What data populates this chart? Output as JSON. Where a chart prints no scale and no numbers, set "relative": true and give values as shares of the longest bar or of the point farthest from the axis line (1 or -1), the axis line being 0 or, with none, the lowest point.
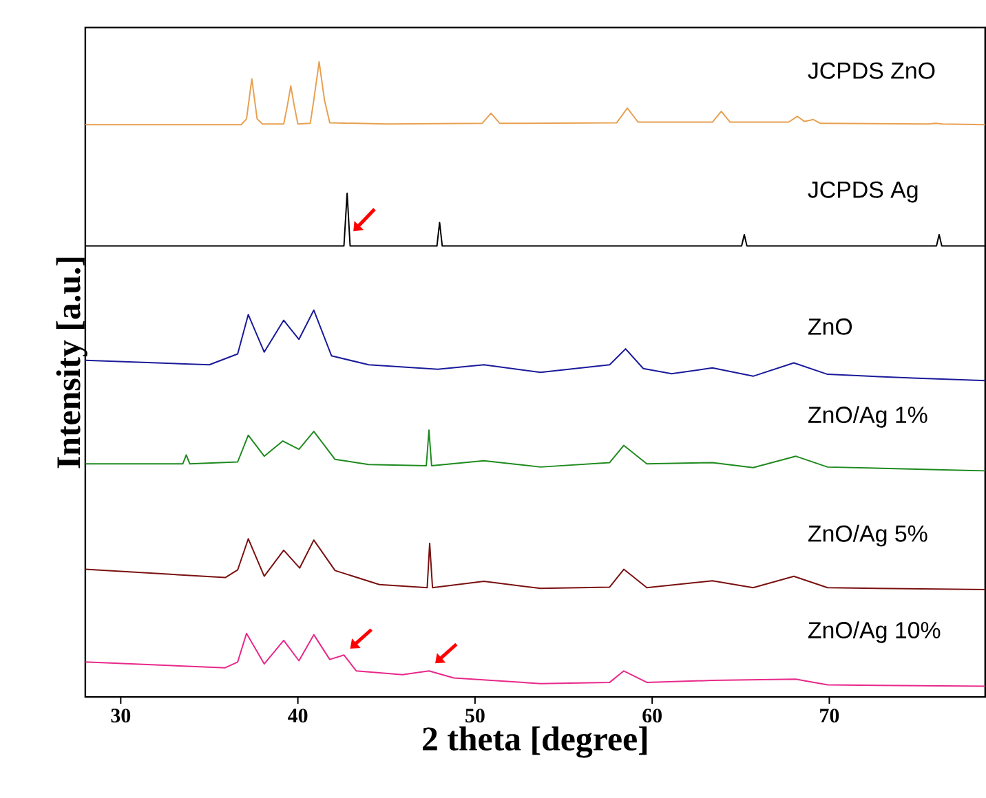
{
  "chart_data": {
    "type": "line",
    "relative": true,
    "xlabel": "2 theta [degree]",
    "ylabel": "Intensity [a.u.]",
    "xlim": [
      28,
      78.8
    ],
    "xticks": [
      30,
      40,
      50,
      60,
      70
    ],
    "tick_labels": "x",
    "series": [
      {
        "name": "JCPDS ZnO",
        "color": "#e8a050",
        "x": [
          28,
          36.8,
          37.1,
          37.4,
          37.7,
          38.0,
          39.2,
          39.4,
          39.6,
          39.8,
          40.0,
          40.7,
          40.9,
          41.2,
          41.5,
          41.8,
          45,
          50.4,
          50.9,
          51.4,
          58.0,
          58.6,
          59.2,
          63.4,
          63.9,
          64.4,
          67.7,
          68.2,
          68.6,
          69.1,
          69.5,
          75.6,
          76.0,
          76.4,
          78.8
        ],
        "values": [
          0.901,
          0.901,
          0.91,
          0.973,
          0.91,
          0.902,
          0.902,
          0.93,
          0.962,
          0.93,
          0.902,
          0.903,
          0.94,
          1.0,
          0.94,
          0.904,
          0.902,
          0.903,
          0.919,
          0.903,
          0.904,
          0.927,
          0.905,
          0.905,
          0.922,
          0.905,
          0.905,
          0.914,
          0.906,
          0.909,
          0.903,
          0.902,
          0.903,
          0.902,
          0.901
        ]
      },
      {
        "name": "JCPDS Ag",
        "color": "#000000",
        "x": [
          28,
          42.6,
          42.78,
          42.95,
          47.85,
          48.0,
          48.15,
          65.05,
          65.2,
          65.35,
          76.05,
          76.2,
          76.35,
          78.8
        ],
        "values": [
          0.71,
          0.71,
          0.793,
          0.71,
          0.71,
          0.747,
          0.71,
          0.71,
          0.728,
          0.71,
          0.71,
          0.728,
          0.71,
          0.71
        ]
      },
      {
        "name": "ZnO",
        "color": "#1a1a9a",
        "x": [
          28,
          35,
          36.6,
          37.2,
          38.1,
          39.2,
          40.06,
          40.9,
          41.9,
          44.0,
          47.9,
          50.5,
          53.7,
          57.6,
          58.5,
          59.5,
          61.1,
          63.4,
          65.7,
          68.0,
          69.9,
          74.7,
          78.8
        ],
        "values": [
          0.53,
          0.523,
          0.54,
          0.602,
          0.543,
          0.593,
          0.563,
          0.609,
          0.537,
          0.523,
          0.516,
          0.523,
          0.511,
          0.523,
          0.548,
          0.517,
          0.509,
          0.518,
          0.505,
          0.526,
          0.508,
          0.502,
          0.498
        ]
      },
      {
        "name": "ZnO/Ag 1%",
        "color": "#1e8a1e",
        "x": [
          28,
          33.5,
          33.7,
          33.9,
          36.6,
          37.2,
          38.1,
          39.15,
          40.06,
          40.9,
          42.1,
          44.0,
          47.25,
          47.4,
          47.55,
          50.5,
          53.7,
          57.6,
          58.4,
          59.7,
          63.4,
          65.7,
          68.1,
          69.9,
          78.8
        ],
        "values": [
          0.367,
          0.367,
          0.381,
          0.367,
          0.37,
          0.412,
          0.379,
          0.403,
          0.39,
          0.418,
          0.374,
          0.366,
          0.364,
          0.42,
          0.364,
          0.372,
          0.362,
          0.369,
          0.396,
          0.367,
          0.369,
          0.361,
          0.379,
          0.362,
          0.356
        ]
      },
      {
        "name": "ZnO/Ag 5%",
        "color": "#7a1010",
        "x": [
          28,
          35.9,
          36.6,
          37.2,
          38.1,
          39.2,
          40.1,
          40.9,
          42.1,
          44.6,
          47.3,
          47.44,
          47.6,
          50.5,
          53.7,
          57.6,
          58.4,
          59.7,
          63.4,
          65.7,
          68.0,
          69.9,
          78.8
        ],
        "values": [
          0.201,
          0.188,
          0.2,
          0.249,
          0.19,
          0.231,
          0.203,
          0.247,
          0.199,
          0.177,
          0.172,
          0.242,
          0.172,
          0.182,
          0.171,
          0.173,
          0.201,
          0.172,
          0.183,
          0.172,
          0.19,
          0.172,
          0.169
        ]
      },
      {
        "name": "ZnO/Ag 10%",
        "color": "#e8288a",
        "x": [
          28,
          35.9,
          36.6,
          37.1,
          38.1,
          39.2,
          40.06,
          40.9,
          41.8,
          42.6,
          43.3,
          45.9,
          47.4,
          48.8,
          53.7,
          57.6,
          58.4,
          59.7,
          63.4,
          68.1,
          69.9,
          78.8
        ],
        "values": [
          0.055,
          0.046,
          0.055,
          0.1,
          0.052,
          0.089,
          0.057,
          0.098,
          0.059,
          0.066,
          0.041,
          0.035,
          0.041,
          0.03,
          0.021,
          0.023,
          0.041,
          0.023,
          0.026,
          0.028,
          0.019,
          0.017
        ]
      }
    ]
  }
}
